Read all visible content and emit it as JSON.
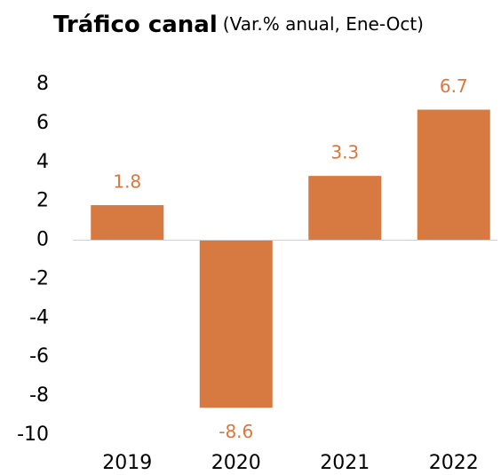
{
  "chart_data": {
    "type": "bar",
    "title": "Tráfico canal",
    "subtitle": "(Var.% anual, Ene-Oct)",
    "categories": [
      "2019",
      "2020",
      "2021",
      "2022"
    ],
    "values": [
      1.8,
      -8.6,
      3.3,
      6.7
    ],
    "color": "#d77a41",
    "ylim": [
      -10,
      8
    ],
    "yticks": [
      -10,
      -8,
      -6,
      -4,
      -2,
      0,
      2,
      4,
      6,
      8
    ],
    "grid": false
  }
}
